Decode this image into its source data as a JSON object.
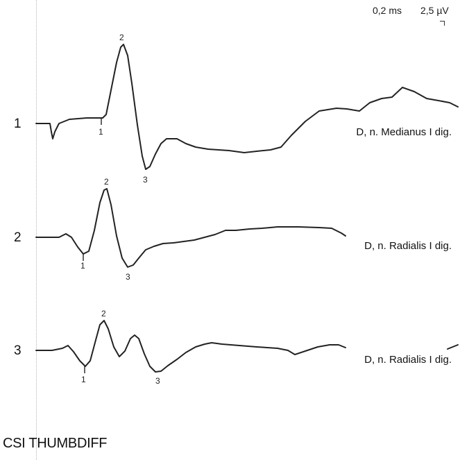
{
  "scale": {
    "time": "0,2 ms",
    "amplitude": "2,5 µV"
  },
  "footer": "CSI THUMBDIFF",
  "chart_data": {
    "type": "line",
    "traces": [
      {
        "number": "1",
        "label": "D, n. Medianus I dig.",
        "markers": [
          "1",
          "2",
          "3"
        ]
      },
      {
        "number": "2",
        "label": "D, n. Radialis I dig.",
        "markers": [
          "1",
          "2",
          "3"
        ]
      },
      {
        "number": "3",
        "label": "D, n. Radialis I dig.",
        "markers": [
          "1",
          "2",
          "3"
        ]
      }
    ],
    "colors": {
      "trace": "#222222",
      "guide": "#b5b5b5"
    }
  }
}
